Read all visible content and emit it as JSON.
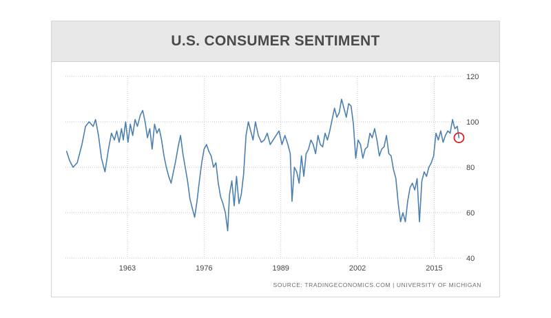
{
  "header": {
    "title": "U.S. CONSUMER SENTIMENT"
  },
  "source": "SOURCE: TRADINGECONOMICS.COM | UNIVERSITY OF MICHIGAN",
  "colors": {
    "line": "#4a7fb0",
    "grid": "#c4c4c4",
    "marker": "#d0202a",
    "header_bg": "#e8e8e8"
  },
  "chart_data": {
    "type": "line",
    "title": "U.S. CONSUMER SENTIMENT",
    "xlabel": "",
    "ylabel": "",
    "xlim": [
      1952.5,
      2019.5
    ],
    "ylim": [
      40,
      120
    ],
    "x_ticks": [
      1963,
      1976,
      1989,
      2002,
      2015
    ],
    "x_tick_labels": [
      "1963",
      "1976",
      "1989",
      "2002",
      "2015"
    ],
    "y_ticks": [
      40,
      60,
      80,
      100,
      120
    ],
    "y_tick_labels": [
      "40",
      "60",
      "80",
      "100",
      "120"
    ],
    "grid": true,
    "series": [
      {
        "name": "U.S. Consumer Sentiment",
        "x": [
          1952.7,
          1953.2,
          1953.8,
          1954.5,
          1955.3,
          1955.9,
          1956.5,
          1957.2,
          1957.6,
          1958.1,
          1958.6,
          1959.2,
          1959.8,
          1960.3,
          1960.8,
          1961.2,
          1961.6,
          1962.0,
          1962.3,
          1962.7,
          1963.1,
          1963.5,
          1963.9,
          1964.3,
          1964.7,
          1965.2,
          1965.6,
          1966.0,
          1966.4,
          1966.8,
          1967.2,
          1967.6,
          1968.0,
          1968.4,
          1968.8,
          1969.2,
          1969.6,
          1970.0,
          1970.4,
          1970.8,
          1971.2,
          1971.6,
          1972.0,
          1972.4,
          1972.8,
          1973.2,
          1973.6,
          1974.0,
          1974.4,
          1974.8,
          1975.2,
          1975.6,
          1976.0,
          1976.4,
          1976.8,
          1977.2,
          1977.6,
          1978.0,
          1978.4,
          1978.8,
          1979.2,
          1979.6,
          1980.0,
          1980.3,
          1980.7,
          1981.1,
          1981.5,
          1981.9,
          1982.3,
          1982.7,
          1983.1,
          1983.5,
          1983.9,
          1984.3,
          1984.7,
          1985.2,
          1985.7,
          1986.2,
          1986.7,
          1987.2,
          1987.7,
          1988.2,
          1988.7,
          1989.2,
          1989.7,
          1990.2,
          1990.6,
          1990.9,
          1991.3,
          1991.7,
          1992.1,
          1992.5,
          1992.9,
          1993.3,
          1993.7,
          1994.1,
          1994.5,
          1994.9,
          1995.3,
          1995.7,
          1996.1,
          1996.5,
          1996.9,
          1997.3,
          1997.7,
          1998.1,
          1998.5,
          1998.9,
          1999.3,
          1999.7,
          2000.1,
          2000.5,
          2000.9,
          2001.3,
          2001.7,
          2002.1,
          2002.5,
          2002.9,
          2003.3,
          2003.7,
          2004.1,
          2004.5,
          2004.9,
          2005.3,
          2005.7,
          2006.1,
          2006.5,
          2006.9,
          2007.3,
          2007.7,
          2008.1,
          2008.5,
          2008.9,
          2009.3,
          2009.7,
          2010.1,
          2010.5,
          2010.9,
          2011.3,
          2011.7,
          2012.1,
          2012.5,
          2012.9,
          2013.3,
          2013.7,
          2014.1,
          2014.5,
          2014.9,
          2015.3,
          2015.7,
          2016.1,
          2016.5,
          2016.9,
          2017.3,
          2017.7,
          2018.1,
          2018.5,
          2018.9,
          2019.2
        ],
        "values": [
          87,
          83,
          80,
          82,
          90,
          98,
          100,
          98,
          101,
          94,
          84,
          78,
          88,
          95,
          92,
          96,
          91,
          97,
          92,
          100,
          91,
          99,
          94,
          101,
          98,
          103,
          105,
          100,
          93,
          97,
          88,
          99,
          95,
          97,
          92,
          85,
          80,
          76,
          73,
          78,
          83,
          89,
          94,
          86,
          80,
          74,
          66,
          62,
          58,
          65,
          74,
          82,
          88,
          90,
          87,
          85,
          80,
          82,
          73,
          67,
          64,
          60,
          52,
          68,
          74,
          63,
          76,
          64,
          68,
          77,
          94,
          100,
          96,
          92,
          100,
          94,
          91,
          92,
          95,
          90,
          92,
          94,
          96,
          90,
          94,
          90,
          86,
          65,
          80,
          78,
          73,
          85,
          76,
          86,
          88,
          92,
          90,
          86,
          94,
          90,
          89,
          95,
          92,
          96,
          101,
          106,
          102,
          104,
          110,
          106,
          102,
          108,
          107,
          99,
          84,
          92,
          90,
          84,
          88,
          89,
          95,
          93,
          97,
          92,
          85,
          88,
          89,
          94,
          86,
          85,
          79,
          75,
          64,
          56,
          60,
          56,
          65,
          71,
          73,
          70,
          75,
          56,
          74,
          78,
          76,
          80,
          82,
          85,
          95,
          92,
          96,
          91,
          94,
          96,
          95,
          101,
          97,
          98,
          93
        ]
      }
    ],
    "annotations": [
      {
        "type": "circle-marker",
        "x": 2019.2,
        "value": 93
      }
    ]
  }
}
